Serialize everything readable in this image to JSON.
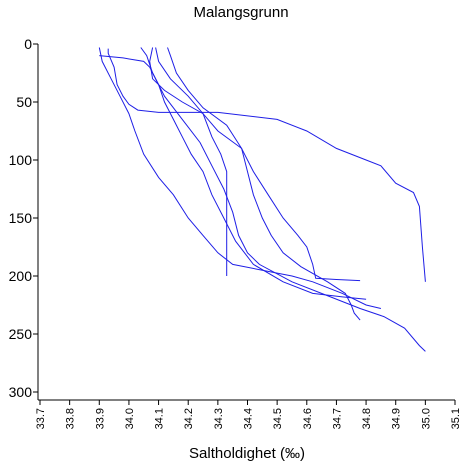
{
  "chart_data": {
    "type": "line",
    "title": "Malangsgrunn",
    "xlabel": "Saltholdighet (‰)",
    "ylabel": "",
    "xlim": [
      33.7,
      35.1
    ],
    "ylim": [
      0,
      300
    ],
    "y_inverted": true,
    "grid": false,
    "legend": "none",
    "line_color": "#1f1fe6",
    "x_ticks": [
      "33.7",
      "33.8",
      "33.9",
      "34.0",
      "34.1",
      "34.2",
      "34.3",
      "34.4",
      "34.5",
      "34.6",
      "34.7",
      "34.8",
      "34.9",
      "35.0",
      "35.1"
    ],
    "y_ticks": [
      "0",
      "50",
      "100",
      "150",
      "200",
      "250",
      "300"
    ],
    "series": [
      {
        "points": [
          [
            33.93,
            4
          ],
          [
            33.93,
            8
          ],
          [
            33.95,
            20
          ],
          [
            33.96,
            35
          ],
          [
            33.98,
            45
          ],
          [
            34.0,
            52
          ],
          [
            34.03,
            57
          ],
          [
            34.1,
            59
          ],
          [
            34.3,
            59
          ],
          [
            34.5,
            65
          ],
          [
            34.6,
            75
          ],
          [
            34.7,
            90
          ],
          [
            34.8,
            100
          ],
          [
            34.85,
            105
          ],
          [
            34.9,
            120
          ],
          [
            34.96,
            128
          ],
          [
            34.98,
            140
          ],
          [
            34.99,
            175
          ],
          [
            35.0,
            205
          ]
        ]
      },
      {
        "points": [
          [
            34.08,
            3
          ],
          [
            34.07,
            15
          ],
          [
            34.08,
            30
          ],
          [
            34.12,
            40
          ],
          [
            34.18,
            50
          ],
          [
            34.25,
            60
          ],
          [
            34.3,
            75
          ],
          [
            34.38,
            90
          ],
          [
            34.42,
            110
          ],
          [
            34.47,
            130
          ],
          [
            34.52,
            150
          ],
          [
            34.57,
            165
          ],
          [
            34.6,
            175
          ],
          [
            34.62,
            190
          ],
          [
            34.63,
            202
          ],
          [
            34.7,
            203
          ],
          [
            34.78,
            204
          ]
        ]
      },
      {
        "points": [
          [
            34.04,
            3
          ],
          [
            34.06,
            10
          ],
          [
            34.08,
            25
          ],
          [
            34.12,
            45
          ],
          [
            34.18,
            65
          ],
          [
            34.24,
            85
          ],
          [
            34.28,
            105
          ],
          [
            34.32,
            125
          ],
          [
            34.35,
            145
          ],
          [
            34.37,
            165
          ],
          [
            34.4,
            180
          ],
          [
            34.44,
            190
          ],
          [
            34.55,
            205
          ],
          [
            34.68,
            218
          ],
          [
            34.78,
            228
          ],
          [
            34.86,
            235
          ],
          [
            34.93,
            245
          ],
          [
            34.98,
            260
          ],
          [
            35.0,
            265
          ]
        ]
      },
      {
        "points": [
          [
            34.09,
            3
          ],
          [
            34.1,
            15
          ],
          [
            34.14,
            30
          ],
          [
            34.2,
            45
          ],
          [
            34.25,
            60
          ],
          [
            34.28,
            80
          ],
          [
            34.31,
            95
          ],
          [
            34.33,
            110
          ],
          [
            34.33,
            140
          ],
          [
            34.33,
            170
          ],
          [
            34.33,
            200
          ]
        ]
      },
      {
        "points": [
          [
            33.9,
            3
          ],
          [
            33.91,
            15
          ],
          [
            33.94,
            30
          ],
          [
            33.97,
            45
          ],
          [
            34.0,
            60
          ],
          [
            34.02,
            75
          ],
          [
            34.05,
            95
          ],
          [
            34.1,
            115
          ],
          [
            34.15,
            130
          ],
          [
            34.2,
            150
          ],
          [
            34.25,
            165
          ],
          [
            34.3,
            180
          ],
          [
            34.35,
            190
          ],
          [
            34.45,
            195
          ],
          [
            34.55,
            200
          ],
          [
            34.62,
            205
          ],
          [
            34.72,
            215
          ],
          [
            34.8,
            225
          ],
          [
            34.85,
            228
          ]
        ]
      },
      {
        "points": [
          [
            34.13,
            3
          ],
          [
            34.14,
            10
          ],
          [
            34.16,
            25
          ],
          [
            34.2,
            40
          ],
          [
            34.25,
            55
          ],
          [
            34.33,
            70
          ],
          [
            34.38,
            90
          ],
          [
            34.4,
            110
          ],
          [
            34.42,
            130
          ],
          [
            34.45,
            150
          ],
          [
            34.48,
            165
          ],
          [
            34.52,
            180
          ],
          [
            34.58,
            192
          ],
          [
            34.67,
            205
          ],
          [
            34.73,
            215
          ],
          [
            34.75,
            225
          ],
          [
            34.76,
            232
          ],
          [
            34.78,
            238
          ]
        ]
      },
      {
        "points": [
          [
            33.9,
            10
          ],
          [
            33.98,
            12
          ],
          [
            34.05,
            15
          ],
          [
            34.07,
            20
          ],
          [
            34.1,
            35
          ],
          [
            34.12,
            50
          ],
          [
            34.15,
            65
          ],
          [
            34.18,
            80
          ],
          [
            34.21,
            95
          ],
          [
            34.25,
            110
          ],
          [
            34.28,
            130
          ],
          [
            34.32,
            150
          ],
          [
            34.36,
            170
          ],
          [
            34.42,
            190
          ],
          [
            34.52,
            205
          ],
          [
            34.62,
            215
          ],
          [
            34.72,
            218
          ],
          [
            34.8,
            220
          ]
        ]
      }
    ]
  }
}
